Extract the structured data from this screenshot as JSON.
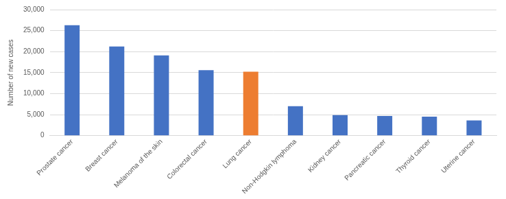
{
  "chart_data": {
    "type": "bar",
    "categories": [
      "Prostate cancer",
      "Breast cancer",
      "Melanoma of the skin",
      "Colorectal cancer",
      "Lung cancer",
      "Non-Hodgkin lymphoma",
      "Kidney cancer",
      "Pancreatic cancer",
      "Thyroid cancer",
      "Uterine cancer"
    ],
    "values": [
      26300,
      21200,
      19100,
      15600,
      15200,
      7000,
      4900,
      4700,
      4500,
      3600
    ],
    "colors": [
      "#4472c4",
      "#4472c4",
      "#4472c4",
      "#4472c4",
      "#ed7d31",
      "#4472c4",
      "#4472c4",
      "#4472c4",
      "#4472c4",
      "#4472c4"
    ],
    "y_label": "Number of new cases",
    "ylim": [
      0,
      30000
    ],
    "yticks": [
      0,
      {
        "value": 5000,
        "label": "5,000"
      },
      {
        "value": 10000,
        "label": "10,000"
      },
      {
        "value": 15000,
        "label": "15,000"
      },
      {
        "value": 20000,
        "label": "20,000"
      },
      {
        "value": 25000,
        "label": "25,000"
      },
      {
        "value": 30000,
        "label": "30,000"
      }
    ],
    "grid": true
  }
}
